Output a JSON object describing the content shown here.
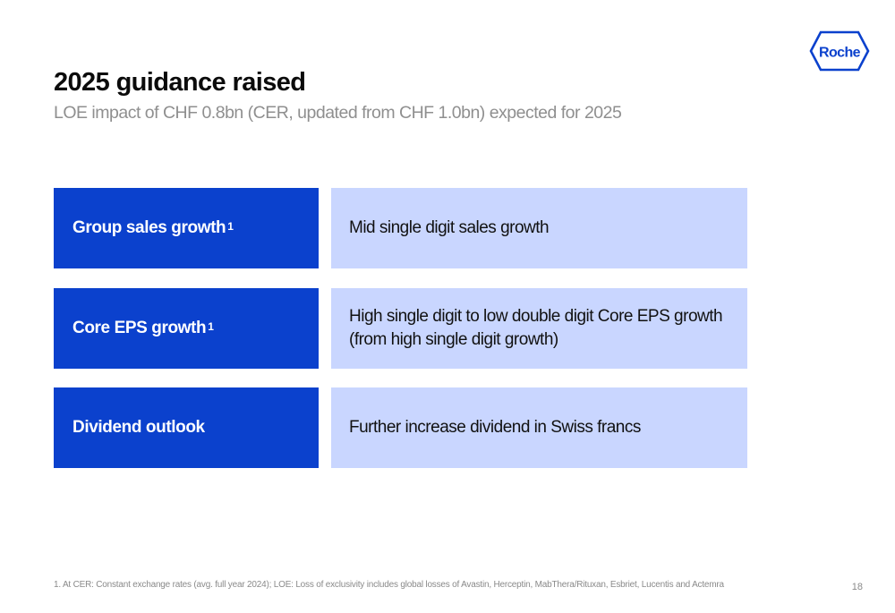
{
  "slide": {
    "title": "2025 guidance raised",
    "subtitle": "LOE impact of CHF 0.8bn (CER, updated from CHF 1.0bn) expected for 2025",
    "logo_text": "Roche",
    "brand_color": "#0b41cd",
    "accent_light_color": "#c9d6ff",
    "rows": [
      {
        "label": "Group sales growth",
        "footnote_marker": "1",
        "value": "Mid single digit sales growth"
      },
      {
        "label": "Core EPS growth",
        "footnote_marker": "1",
        "value": "High single digit to low double digit Core EPS growth (from high single digit growth)"
      },
      {
        "label": "Dividend outlook",
        "footnote_marker": "",
        "value": "Further increase dividend in Swiss francs"
      }
    ],
    "footnote": "1. At CER: Constant exchange rates (avg. full year 2024); LOE: Loss of exclusivity includes global losses of Avastin, Herceptin, MabThera/Rituxan, Esbriet, Lucentis and Actemra",
    "page_number": "18"
  }
}
